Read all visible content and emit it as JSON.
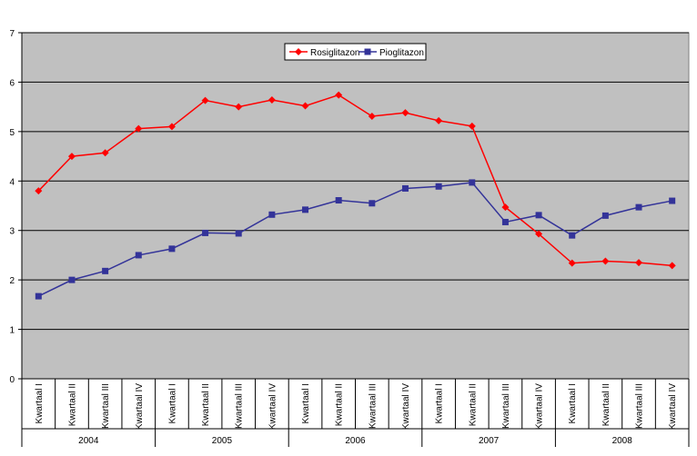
{
  "chart_data": {
    "type": "line",
    "title": "",
    "xlabel": "",
    "ylabel": "",
    "ylim": [
      0,
      7
    ],
    "yticks": [
      "0",
      "1",
      "2",
      "3",
      "4",
      "5",
      "6",
      "7"
    ],
    "grid": true,
    "legend_position": "top-center",
    "categories": [
      "Kwartaal I",
      "Kwartaal II",
      "Kwartaal III",
      "Kwartaal IV",
      "Kwartaal I",
      "Kwartaal II",
      "Kwartaal III",
      "Kwartaal IV",
      "Kwartaal I",
      "Kwartaal II",
      "Kwartaal III",
      "Kwartaal IV",
      "Kwartaal I",
      "Kwartaal II",
      "Kwartaal III",
      "Kwartaal IV",
      "Kwartaal I",
      "Kwartaal II",
      "Kwartaal III",
      "Kwartaal IV"
    ],
    "groups": [
      {
        "label": "2004",
        "count": 4
      },
      {
        "label": "2005",
        "count": 4
      },
      {
        "label": "2006",
        "count": 4
      },
      {
        "label": "2007",
        "count": 4
      },
      {
        "label": "2008",
        "count": 4
      }
    ],
    "series": [
      {
        "name": "Rosiglitazon",
        "color": "#ff0000",
        "marker": "diamond",
        "values": [
          3.8,
          4.5,
          4.57,
          5.06,
          5.1,
          5.63,
          5.5,
          5.64,
          5.52,
          5.74,
          5.31,
          5.38,
          5.22,
          5.11,
          3.47,
          2.93,
          2.34,
          2.38,
          2.35,
          2.29
        ]
      },
      {
        "name": "Pioglitazon",
        "color": "#333399",
        "marker": "square",
        "values": [
          1.67,
          2.0,
          2.18,
          2.5,
          2.63,
          2.95,
          2.94,
          3.32,
          3.42,
          3.61,
          3.55,
          3.85,
          3.89,
          3.97,
          3.17,
          3.31,
          2.9,
          3.3,
          3.47,
          3.6
        ]
      }
    ],
    "colors": {
      "plot_background": "#c0c0c0",
      "gridline": "#000000"
    }
  }
}
